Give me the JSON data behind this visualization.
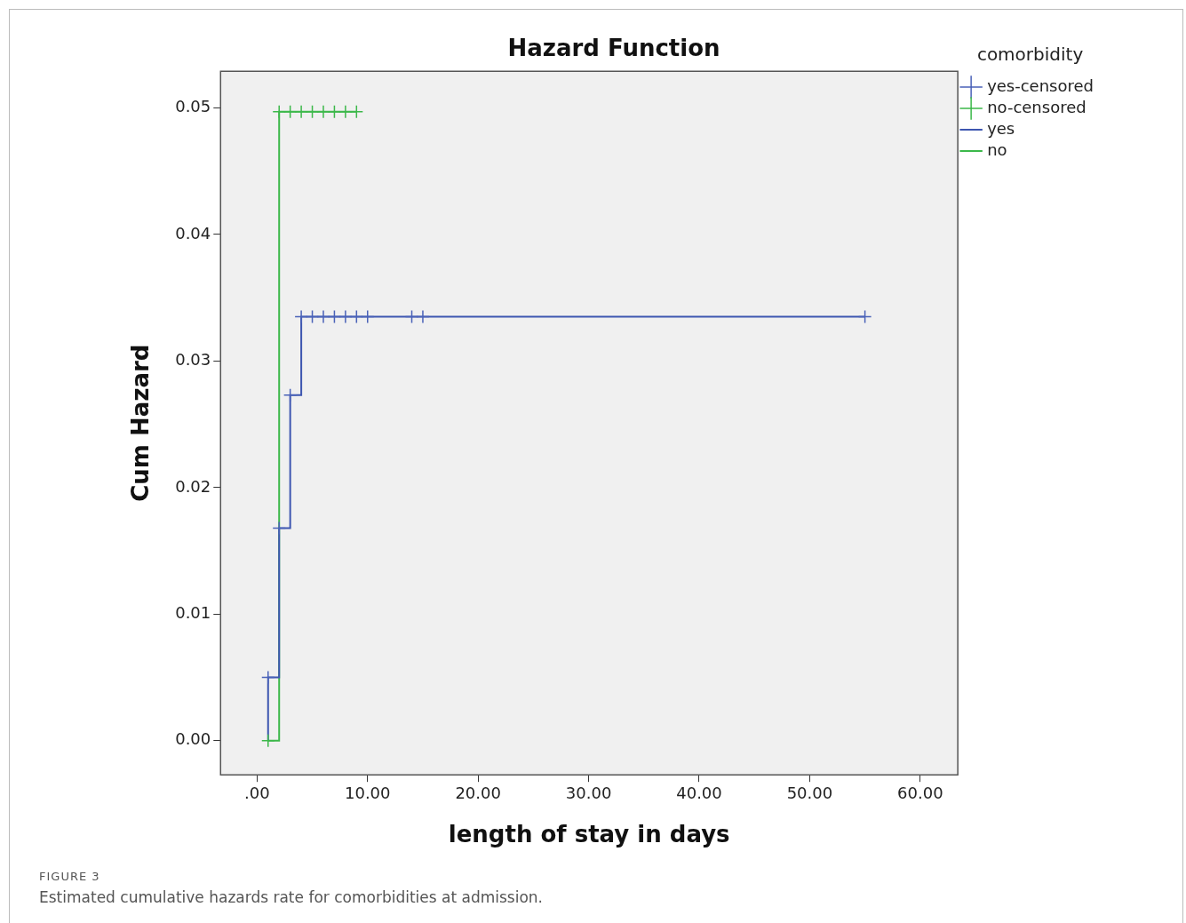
{
  "chart_data": {
    "type": "step",
    "title": "Hazard Function",
    "xlabel": "length of stay in days",
    "ylabel": "Cum Hazard",
    "legend_title": "comorbidity",
    "legend": "top right",
    "grid": false,
    "xlim": [
      -3.3,
      63.4
    ],
    "xticks": [
      {
        "value": 0,
        "label": ".00"
      },
      {
        "value": 10,
        "label": "10.00"
      },
      {
        "value": 20,
        "label": "20.00"
      },
      {
        "value": 30,
        "label": "30.00"
      },
      {
        "value": 40,
        "label": "40.00"
      },
      {
        "value": 50,
        "label": "50.00"
      },
      {
        "value": 60,
        "label": "60.00"
      }
    ],
    "ylim": [
      -0.0027,
      0.0529
    ],
    "yticks": [
      {
        "value": 0,
        "label": "0.00"
      },
      {
        "value": 0.01,
        "label": "0.01"
      },
      {
        "value": 0.02,
        "label": "0.02"
      },
      {
        "value": 0.03,
        "label": "0.03"
      },
      {
        "value": 0.04,
        "label": "0.04"
      },
      {
        "value": 0.05,
        "label": "0.05"
      }
    ],
    "series": [
      {
        "name": "yes",
        "type": "step",
        "color": "#3d56b0",
        "x": [
          1,
          1,
          2,
          3,
          4,
          55
        ],
        "values": [
          0,
          0.005,
          0.0168,
          0.0273,
          0.0335,
          0.0335
        ]
      },
      {
        "name": "no",
        "type": "step",
        "color": "#3cb84a",
        "x": [
          1,
          2,
          9
        ],
        "values": [
          0,
          0.0497,
          0.0497
        ]
      },
      {
        "name": "yes-censored",
        "type": "scatter",
        "marker": "cross",
        "color": "#4a62b8",
        "x": [
          1,
          2,
          3,
          4,
          5,
          6,
          7,
          8,
          9,
          10,
          14,
          15,
          55
        ],
        "values": [
          0.005,
          0.0168,
          0.0273,
          0.0335,
          0.0335,
          0.0335,
          0.0335,
          0.0335,
          0.0335,
          0.0335,
          0.0335,
          0.0335,
          0.0335
        ]
      },
      {
        "name": "no-censored",
        "type": "scatter",
        "marker": "cross",
        "color": "#3cb84a",
        "x": [
          1,
          2,
          3,
          4,
          5,
          6,
          7,
          8,
          9
        ],
        "values": [
          0,
          0.0497,
          0.0497,
          0.0497,
          0.0497,
          0.0497,
          0.0497,
          0.0497,
          0.0497
        ]
      }
    ],
    "annotations": [
      "FIGURE 3",
      "Estimated cumulative hazards rate for comorbidities at admission."
    ]
  }
}
